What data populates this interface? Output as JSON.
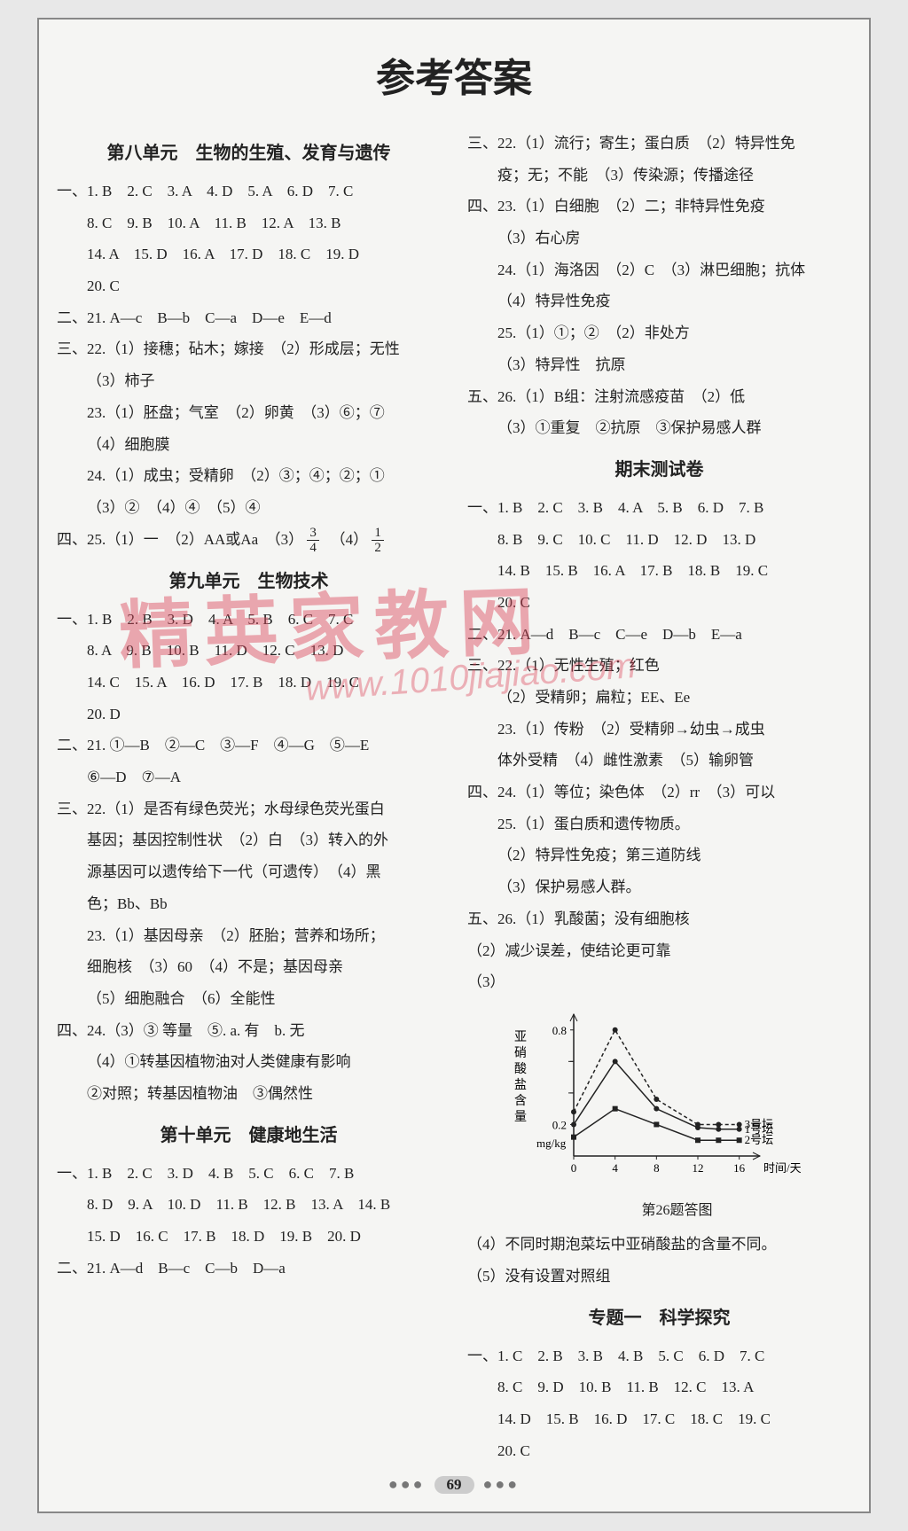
{
  "title": "参考答案",
  "page_number": "69",
  "watermark_text": "精英家教网",
  "watermark_url": "www.1010jiajiao.com",
  "left": {
    "unit8_header": "第八单元　生物的生殖、发育与遗传",
    "u8_l1": "一、1. B　2. C　3. A　4. D　5. A　6. D　7. C",
    "u8_l2": "8. C　9. B　10. A　11. B　12. A　13. B",
    "u8_l3": "14. A　15. D　16. A　17. D　18. C　19. D",
    "u8_l4": "20. C",
    "u8_l5": "二、21. A—c　B—b　C—a　D—e　E—d",
    "u8_l6": "三、22.（1）接穗；砧木；嫁接　（2）形成层；无性",
    "u8_l7": "（3）柿子",
    "u8_l8": "23.（1）胚盘；气室　（2）卵黄　（3）⑥；⑦",
    "u8_l9": "（4）细胞膜",
    "u8_l10": "24.（1）成虫；受精卵　（2）③；④；②；①",
    "u8_l11": "（3）②　（4）④　（5）④",
    "u8_l12a": "四、25.（1）一　（2）AA或Aa　（3）",
    "u8_l12b": "　（4）",
    "unit9_header": "第九单元　生物技术",
    "u9_l1": "一、1. B　2. B　3. D　4. A　5. B　6. C　7. C",
    "u9_l2": "8. A　9. B　10. B　11. D　12. C　13. D",
    "u9_l3": "14. C　15. A　16. D　17. B　18. D　19. C",
    "u9_l4": "20. D",
    "u9_l5": "二、21. ①—B　②—C　③—F　④—G　⑤—E",
    "u9_l6": "⑥—D　⑦—A",
    "u9_l7": "三、22.（1）是否有绿色荧光；水母绿色荧光蛋白",
    "u9_l8": "基因；基因控制性状　（2）白　（3）转入的外",
    "u9_l9": "源基因可以遗传给下一代（可遗传）　（4）黑",
    "u9_l10": "色；Bb、Bb",
    "u9_l11": "23.（1）基因母亲　（2）胚胎；营养和场所；",
    "u9_l12": "细胞核　（3）60　（4）不是；基因母亲",
    "u9_l13": "（5）细胞融合　（6）全能性",
    "u9_l14": "四、24.（3）③ 等量　⑤. a. 有　b. 无",
    "u9_l15": "（4）①转基因植物油对人类健康有影响",
    "u9_l16": "②对照；转基因植物油　③偶然性",
    "unit10_header": "第十单元　健康地生活",
    "u10_l1": "一、1. B　2. C　3. D　4. B　5. C　6. C　7. B",
    "u10_l2": "8. D　9. A　10. D　11. B　12. B　13. A　14. B",
    "u10_l3": "15. D　16. C　17. B　18. D　19. B　20. D",
    "u10_l4": "二、21. A—d　B—c　C—b　D—a"
  },
  "right": {
    "u10_r1": "三、22.（1）流行；寄生；蛋白质　（2）特异性免",
    "u10_r2": "疫；无；不能　（3）传染源；传播途径",
    "u10_r3": "四、23.（1）白细胞　（2）二；非特异性免疫",
    "u10_r4": "（3）右心房",
    "u10_r5": "24.（1）海洛因　（2）C　（3）淋巴细胞；抗体",
    "u10_r6": "（4）特异性免疫",
    "u10_r7": "25.（1）①；②　（2）非处方",
    "u10_r8": "（3）特异性　抗原",
    "u10_r9": "五、26.（1）B组：注射流感疫苗　（2）低",
    "u10_r10": "（3）①重复　②抗原　③保护易感人群",
    "final_header": "期末测试卷",
    "f_l1": "一、1. B　2. C　3. B　4. A　5. B　6. D　7. B",
    "f_l2": "8. B　9. C　10. C　11. D　12. D　13. D",
    "f_l3": "14. B　15. B　16. A　17. B　18. B　19. C",
    "f_l4": "20. C",
    "f_l5": "二、21. A—d　B—c　C—e　D—b　E—a",
    "f_l6": "三、22.（1）无性生殖；红色",
    "f_l7": "（2）受精卵；扁粒；EE、Ee",
    "f_l8": "23.（1）传粉　（2）受精卵→幼虫→成虫",
    "f_l9": "体外受精　（4）雌性激素　（5）输卵管",
    "f_l10": "四、24.（1）等位；染色体　（2）rr　（3）可以",
    "f_l11": "25.（1）蛋白质和遗传物质。",
    "f_l12": "（2）特异性免疫；第三道防线",
    "f_l13": "（3）保护易感人群。",
    "f_l14": "五、26.（1）乳酸菌；没有细胞核",
    "f_l15": "（2）减少误差，使结论更可靠",
    "f_l16": "（3）",
    "chart": {
      "type": "line",
      "ylabel": "亚硝酸盐含量 mg/kg",
      "xlabel": "时间/天",
      "caption": "第26题答图",
      "xlim": [
        0,
        18
      ],
      "ylim": [
        0,
        0.9
      ],
      "xticks": [
        0,
        4,
        8,
        12,
        16
      ],
      "yticks": [
        0.2,
        0.4,
        0.6,
        0.8
      ],
      "yticks_labels": [
        "0.2",
        "",
        "",
        "0.8"
      ],
      "series": [
        {
          "name": "3号坛",
          "dash": "4 3",
          "marker": "circle",
          "color": "#222",
          "x": [
            0,
            4,
            8,
            12,
            14,
            16
          ],
          "y": [
            0.28,
            0.8,
            0.36,
            0.2,
            0.2,
            0.2
          ]
        },
        {
          "name": "1号坛",
          "dash": "none",
          "marker": "circle",
          "color": "#222",
          "x": [
            0,
            4,
            8,
            12,
            14,
            16
          ],
          "y": [
            0.2,
            0.6,
            0.3,
            0.18,
            0.17,
            0.17
          ]
        },
        {
          "name": "2号坛",
          "dash": "none",
          "marker": "square",
          "color": "#222",
          "x": [
            0,
            4,
            8,
            12,
            14,
            16
          ],
          "y": [
            0.12,
            0.3,
            0.2,
            0.1,
            0.1,
            0.1
          ]
        }
      ],
      "legend_labels": [
        "3号坛",
        "1号坛",
        "2号坛"
      ]
    },
    "f_l17": "（4）不同时期泡菜坛中亚硝酸盐的含量不同。",
    "f_l18": "（5）没有设置对照组",
    "topic1_header": "专题一　科学探究",
    "t1_l1": "一、1. C　2. B　3. B　4. B　5. C　6. D　7. C",
    "t1_l2": "8. C　9. D　10. B　11. B　12. C　13. A",
    "t1_l3": "14. D　15. B　16. D　17. C　18. C　19. C",
    "t1_l4": "20. C"
  },
  "fracs": {
    "f34_top": "3",
    "f34_bot": "4",
    "f12_top": "1",
    "f12_bot": "2"
  }
}
